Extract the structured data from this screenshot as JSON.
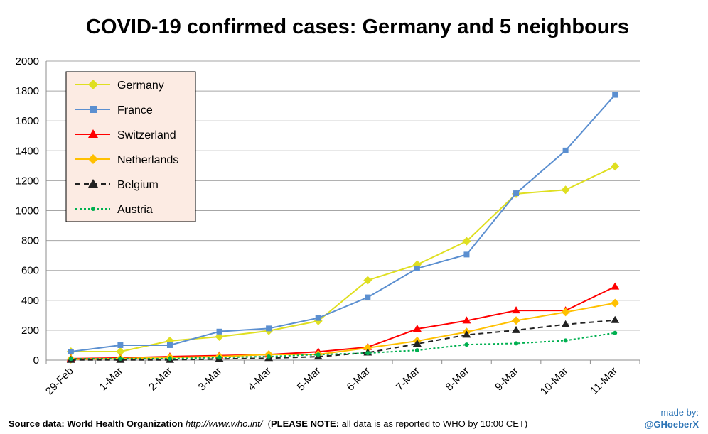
{
  "chart_data": {
    "type": "line",
    "title": "COVID-19 confirmed cases: Germany and 5 neighbours",
    "categories": [
      "29-Feb",
      "1-Mar",
      "2-Mar",
      "3-Mar",
      "4-Mar",
      "5-Mar",
      "6-Mar",
      "7-Mar",
      "8-Mar",
      "9-Mar",
      "10-Mar",
      "11-Mar"
    ],
    "ylim": [
      0,
      2000
    ],
    "yticks": [
      0,
      200,
      400,
      600,
      800,
      1000,
      1200,
      1400,
      1600,
      1800,
      2000
    ],
    "grid": true,
    "legend_position": "top-left",
    "series": [
      {
        "name": "Germany",
        "color": "#dfdf20",
        "marker": "diamond",
        "dash": "solid",
        "values": [
          57,
          57,
          129,
          157,
          196,
          262,
          534,
          639,
          795,
          1112,
          1139,
          1296
        ]
      },
      {
        "name": "France",
        "color": "#5b8fd0",
        "marker": "square",
        "dash": "solid",
        "values": [
          57,
          100,
          100,
          191,
          212,
          282,
          420,
          613,
          706,
          1116,
          1402,
          1774
        ]
      },
      {
        "name": "Switzerland",
        "color": "#ff0000",
        "marker": "triangle",
        "dash": "solid",
        "values": [
          10,
          15,
          24,
          30,
          37,
          56,
          87,
          209,
          264,
          332,
          332,
          491
        ]
      },
      {
        "name": "Netherlands",
        "color": "#ffc000",
        "marker": "diamond",
        "dash": "solid",
        "values": [
          6,
          10,
          18,
          24,
          38,
          38,
          82,
          128,
          188,
          265,
          321,
          382
        ]
      },
      {
        "name": "Belgium",
        "color": "#222222",
        "marker": "triangle",
        "dash": "dashed",
        "values": [
          1,
          1,
          1,
          8,
          13,
          23,
          50,
          109,
          169,
          200,
          239,
          267
        ]
      },
      {
        "name": "Austria",
        "color": "#00b050",
        "marker": "circle",
        "dash": "dotted",
        "values": [
          9,
          10,
          10,
          18,
          24,
          37,
          47,
          66,
          104,
          112,
          131,
          182
        ]
      }
    ]
  },
  "footer": {
    "source_label": "Source data:",
    "source_name": "World Health Organization",
    "source_url": "http://www.who.int/",
    "note_label": "PLEASE NOTE:",
    "note_text": "all data is as reported to WHO by 10:00 CET"
  },
  "credit": {
    "made_by": "made by:",
    "handle": "@GHoeberX"
  }
}
